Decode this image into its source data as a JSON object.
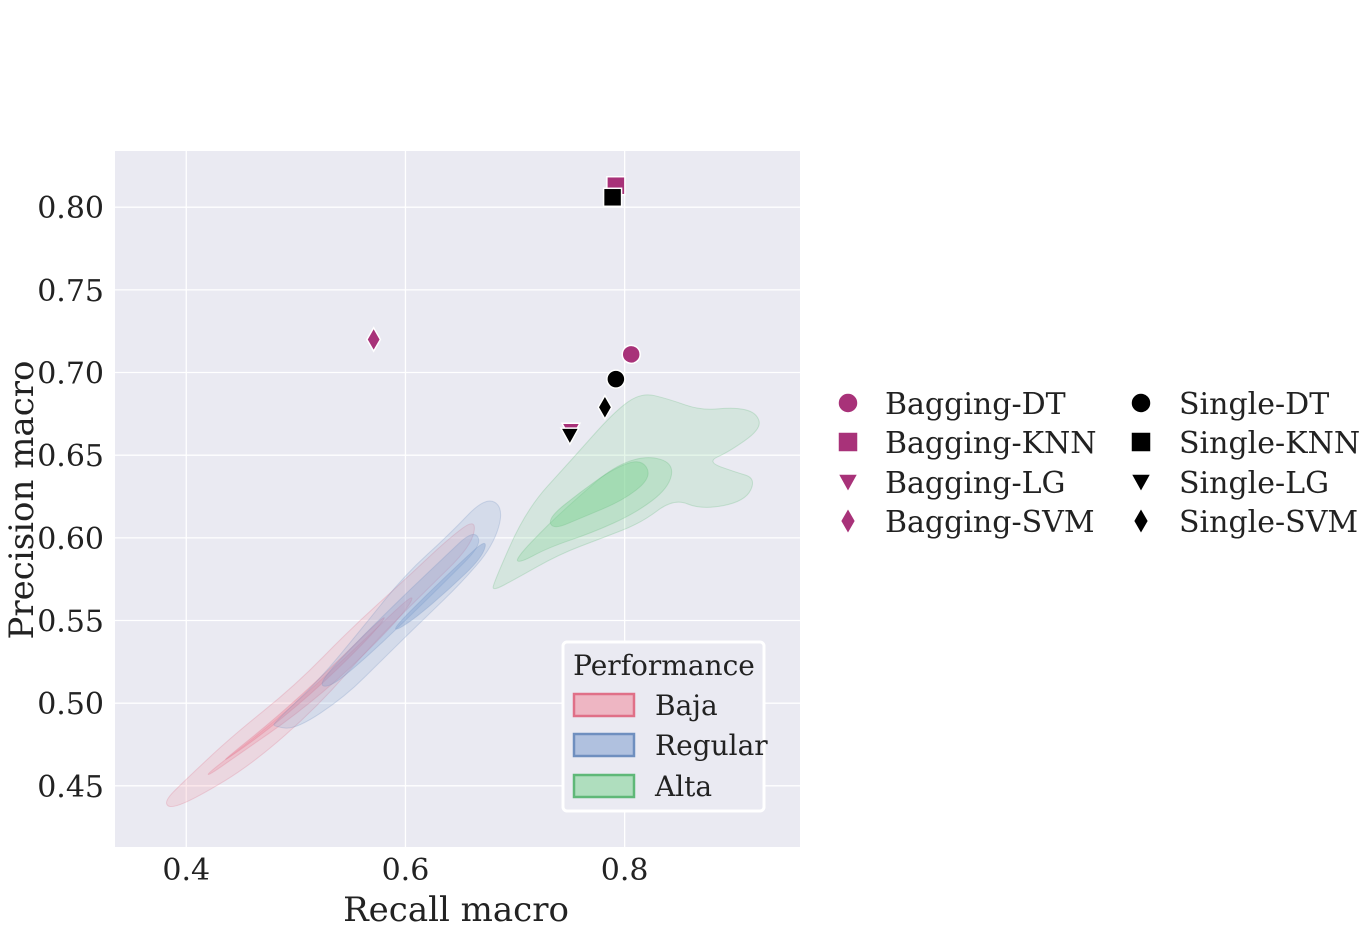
{
  "chart_data": {
    "type": "scatter",
    "title": "",
    "xlabel": "Recall macro",
    "ylabel": "Precision macro",
    "xlim": [
      0.335,
      0.96
    ],
    "ylim": [
      0.413,
      0.834
    ],
    "xticks": [
      0.4,
      0.6,
      0.8
    ],
    "xtick_labels": [
      "0.4",
      "0.6",
      "0.8"
    ],
    "yticks": [
      0.45,
      0.5,
      0.55,
      0.6,
      0.65,
      0.7,
      0.75,
      0.8
    ],
    "ytick_labels": [
      "0.45",
      "0.50",
      "0.55",
      "0.60",
      "0.65",
      "0.70",
      "0.75",
      "0.80"
    ],
    "grid": true,
    "colors": {
      "bagging": "#a83279",
      "single": "#000000",
      "background": "#eaeaf2"
    },
    "series": [
      {
        "name": "Bagging-DT",
        "marker": "circle",
        "color": "#a83279",
        "x": 0.806,
        "y": 0.711
      },
      {
        "name": "Bagging-KNN",
        "marker": "square",
        "color": "#a83279",
        "x": 0.792,
        "y": 0.813
      },
      {
        "name": "Bagging-LG",
        "marker": "triangle-down",
        "color": "#a83279",
        "x": 0.751,
        "y": 0.665
      },
      {
        "name": "Bagging-SVM",
        "marker": "diamond",
        "color": "#a83279",
        "x": 0.571,
        "y": 0.72
      },
      {
        "name": "Single-DT",
        "marker": "circle",
        "color": "#000000",
        "x": 0.792,
        "y": 0.696
      },
      {
        "name": "Single-KNN",
        "marker": "square",
        "color": "#000000",
        "x": 0.789,
        "y": 0.806
      },
      {
        "name": "Single-LG",
        "marker": "triangle-down",
        "color": "#000000",
        "x": 0.75,
        "y": 0.662
      },
      {
        "name": "Single-SVM",
        "marker": "diamond",
        "color": "#000000",
        "x": 0.782,
        "y": 0.679
      }
    ],
    "density_groups": [
      {
        "name": "Baja",
        "fill": "#f08a9d",
        "stroke": "#e07088",
        "levels": [
          [
            [
              0.38,
              0.441
            ],
            [
              0.4,
              0.454
            ],
            [
              0.44,
              0.479
            ],
            [
              0.5,
              0.511
            ],
            [
              0.55,
              0.545
            ],
            [
              0.6,
              0.575
            ],
            [
              0.64,
              0.6
            ],
            [
              0.665,
              0.612
            ],
            [
              0.66,
              0.595
            ],
            [
              0.62,
              0.569
            ],
            [
              0.57,
              0.536
            ],
            [
              0.52,
              0.498
            ],
            [
              0.46,
              0.463
            ],
            [
              0.41,
              0.443
            ],
            [
              0.385,
              0.436
            ]
          ],
          [
            [
              0.42,
              0.458
            ],
            [
              0.47,
              0.483
            ],
            [
              0.52,
              0.512
            ],
            [
              0.57,
              0.543
            ],
            [
              0.61,
              0.568
            ],
            [
              0.6,
              0.555
            ],
            [
              0.55,
              0.521
            ],
            [
              0.5,
              0.493
            ],
            [
              0.45,
              0.47
            ],
            [
              0.42,
              0.456
            ]
          ],
          [
            [
              0.435,
              0.466
            ],
            [
              0.48,
              0.49
            ],
            [
              0.53,
              0.52
            ],
            [
              0.585,
              0.556
            ],
            [
              0.575,
              0.545
            ],
            [
              0.525,
              0.512
            ],
            [
              0.475,
              0.484
            ],
            [
              0.437,
              0.466
            ]
          ]
        ]
      },
      {
        "name": "Regular",
        "fill": "#7f9fcf",
        "stroke": "#6f8fbf",
        "levels": [
          [
            [
              0.48,
              0.488
            ],
            [
              0.52,
              0.513
            ],
            [
              0.56,
              0.545
            ],
            [
              0.6,
              0.578
            ],
            [
              0.64,
              0.602
            ],
            [
              0.673,
              0.625
            ],
            [
              0.69,
              0.618
            ],
            [
              0.68,
              0.595
            ],
            [
              0.65,
              0.572
            ],
            [
              0.62,
              0.553
            ],
            [
              0.58,
              0.527
            ],
            [
              0.545,
              0.504
            ],
            [
              0.5,
              0.484
            ],
            [
              0.48,
              0.486
            ]
          ],
          [
            [
              0.52,
              0.512
            ],
            [
              0.56,
              0.54
            ],
            [
              0.6,
              0.566
            ],
            [
              0.635,
              0.588
            ],
            [
              0.662,
              0.605
            ],
            [
              0.67,
              0.596
            ],
            [
              0.64,
              0.576
            ],
            [
              0.6,
              0.55
            ],
            [
              0.56,
              0.525
            ],
            [
              0.53,
              0.509
            ]
          ],
          [
            [
              0.59,
              0.546
            ],
            [
              0.62,
              0.566
            ],
            [
              0.65,
              0.585
            ],
            [
              0.675,
              0.6
            ],
            [
              0.67,
              0.588
            ],
            [
              0.64,
              0.569
            ],
            [
              0.61,
              0.552
            ],
            [
              0.592,
              0.544
            ]
          ]
        ]
      },
      {
        "name": "Alta",
        "fill": "#7ed493",
        "stroke": "#5fb878",
        "levels": [
          [
            [
              0.68,
              0.572
            ],
            [
              0.71,
              0.617
            ],
            [
              0.75,
              0.646
            ],
            [
              0.79,
              0.676
            ],
            [
              0.815,
              0.688
            ],
            [
              0.84,
              0.684
            ],
            [
              0.87,
              0.677
            ],
            [
              0.9,
              0.679
            ],
            [
              0.92,
              0.676
            ],
            [
              0.925,
              0.666
            ],
            [
              0.895,
              0.652
            ],
            [
              0.875,
              0.646
            ],
            [
              0.9,
              0.64
            ],
            [
              0.92,
              0.636
            ],
            [
              0.91,
              0.622
            ],
            [
              0.87,
              0.617
            ],
            [
              0.845,
              0.624
            ],
            [
              0.815,
              0.609
            ],
            [
              0.78,
              0.6
            ],
            [
              0.74,
              0.59
            ],
            [
              0.7,
              0.575
            ],
            [
              0.68,
              0.568
            ]
          ],
          [
            [
              0.7,
              0.587
            ],
            [
              0.73,
              0.608
            ],
            [
              0.76,
              0.626
            ],
            [
              0.79,
              0.643
            ],
            [
              0.82,
              0.65
            ],
            [
              0.845,
              0.645
            ],
            [
              0.84,
              0.63
            ],
            [
              0.81,
              0.615
            ],
            [
              0.77,
              0.603
            ],
            [
              0.73,
              0.594
            ],
            [
              0.705,
              0.585
            ]
          ],
          [
            [
              0.73,
              0.612
            ],
            [
              0.76,
              0.628
            ],
            [
              0.79,
              0.642
            ],
            [
              0.815,
              0.648
            ],
            [
              0.825,
              0.637
            ],
            [
              0.8,
              0.623
            ],
            [
              0.76,
              0.612
            ],
            [
              0.735,
              0.605
            ]
          ]
        ]
      }
    ],
    "legend_right": {
      "placement": "center-right",
      "columns": 2,
      "entries": [
        "Bagging-DT",
        "Bagging-KNN",
        "Bagging-LG",
        "Bagging-SVM",
        "Single-DT",
        "Single-KNN",
        "Single-LG",
        "Single-SVM"
      ]
    },
    "legend_inset": {
      "placement": "lower-right",
      "title": "Performance",
      "entries": [
        "Baja",
        "Regular",
        "Alta"
      ]
    }
  }
}
